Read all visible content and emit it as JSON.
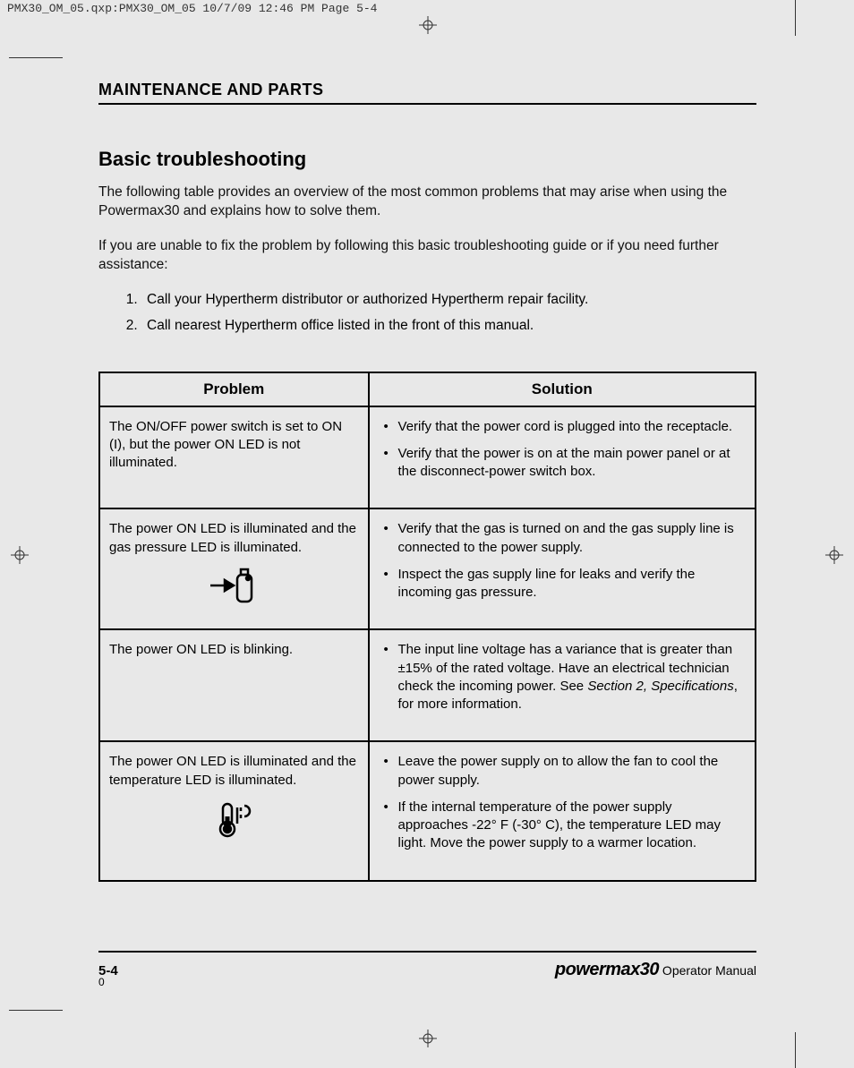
{
  "printer_slug": "PMX30_OM_05.qxp:PMX30_OM_05  10/7/09  12:46 PM  Page 5-4",
  "chapter": "MAINTENANCE AND PARTS",
  "section": "Basic troubleshooting",
  "intro1": "The following table provides an overview of the most common problems that may arise when using the Powermax30 and explains how to solve them.",
  "intro2": "If you are unable to fix the problem by following this basic troubleshooting guide or if you need further assistance:",
  "steps": [
    "Call your Hypertherm distributor or authorized Hypertherm repair facility.",
    "Call nearest Hypertherm office listed in the front of this manual."
  ],
  "table": {
    "headers": {
      "left": "Problem",
      "right": "Solution"
    },
    "rows": [
      {
        "problem": "The ON/OFF power switch is set to ON (I), but the power ON LED is not illuminated.",
        "icon": null,
        "solutions": [
          "Verify that the power cord is plugged into the receptacle.",
          "Verify that the power is on at the main power panel or at the disconnect-power switch box."
        ]
      },
      {
        "problem": "The power ON LED is illuminated and the gas pressure LED is illuminated.",
        "icon": "gas-bottle",
        "solutions": [
          "Verify that the gas is turned on and the gas supply line is connected to the power supply.",
          "Inspect the gas supply line for leaks and verify the incoming gas pressure."
        ]
      },
      {
        "problem": "The power ON LED is blinking.",
        "icon": null,
        "solutions": [
          "The input line voltage has a variance that is greater than ±15% of the rated voltage. Have an electrical technician check the incoming power. See <span class=\"italic\">Section 2, Specifications</span>, for more information."
        ]
      },
      {
        "problem": "The power ON LED is illuminated and the temperature LED is illuminated.",
        "icon": "thermometer",
        "solutions": [
          "Leave the power supply on to allow the fan to cool the power supply.",
          "If the internal temperature of the power supply approaches -22° F (-30° C), the temperature LED may light. Move the power supply to a warmer location."
        ]
      }
    ]
  },
  "footer": {
    "page_num": "5-4",
    "zero": "0",
    "brand": "powermax30",
    "doc": " Operator Manual"
  },
  "icons": {
    "gas-bottle": "<svg width=\"56\" height=\"44\" viewBox=\"0 0 56 44\"><g fill=\"none\" stroke=\"#000\" stroke-width=\"2.5\"><line x1=\"2\" y1=\"22\" x2=\"18\" y2=\"22\"/><polygon points=\"18,16 28,22 18,28\" fill=\"#000\"/><rect x=\"32\" y=\"10\" width=\"16\" height=\"30\" rx=\"5\"/><rect x=\"36\" y=\"4\" width=\"8\" height=\"6\"/><circle cx=\"44\" cy=\"14\" r=\"2\" fill=\"#000\"/></g></svg>",
    "thermometer": "<svg width=\"56\" height=\"44\" viewBox=\"0 0 56 44\"><g fill=\"none\" stroke=\"#000\" stroke-width=\"2.5\"><rect x=\"16\" y=\"6\" width=\"10\" height=\"24\" rx=\"5\"/><circle cx=\"21\" cy=\"34\" r=\"8\"/><circle cx=\"21\" cy=\"34\" r=\"4\" fill=\"#000\"/><line x1=\"21\" y1=\"20\" x2=\"21\" y2=\"30\" stroke-width=\"5\"/><path d=\"M32 10 v18 M36 10 v4 M36 18 v4 M40 8 a6 6 0 0 1 0 12\"/></g></svg>",
    "regmark": "<svg width=\"20\" height=\"20\" viewBox=\"0 0 20 20\"><g fill=\"none\" stroke=\"#333\" stroke-width=\"1\"><circle cx=\"10\" cy=\"10\" r=\"5\"/><line x1=\"10\" y1=\"0\" x2=\"10\" y2=\"20\"/><line x1=\"0\" y1=\"10\" x2=\"20\" y2=\"10\"/></g></svg>"
  }
}
